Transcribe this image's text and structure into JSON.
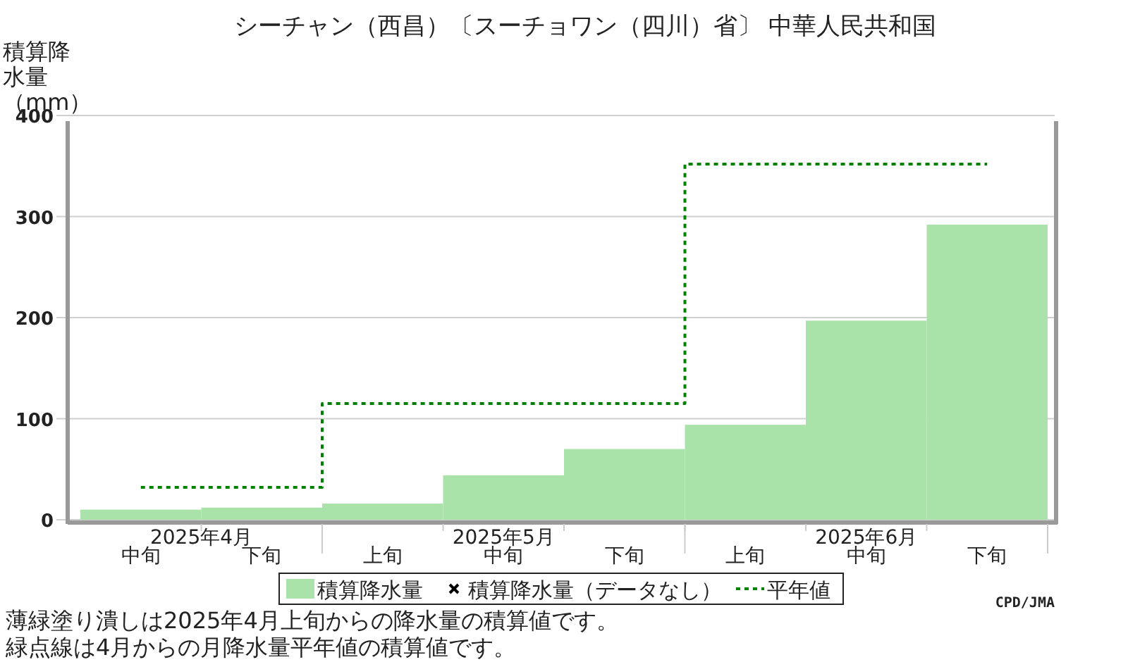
{
  "chart_data": {
    "type": "bar",
    "title": "シーチャン（西昌）〔スーチョワン（四川）省〕 中華人民共和国",
    "ylabel": "積算降水量（mm）",
    "categories": [
      "中旬",
      "下旬",
      "上旬",
      "中旬",
      "下旬",
      "上旬",
      "中旬",
      "下旬"
    ],
    "series": [
      {
        "name": "積算降水量",
        "color": "#aae3aa",
        "values": [
          10,
          12,
          16,
          44,
          70,
          94,
          197,
          292
        ]
      },
      {
        "name": "積算降水量（データなし）",
        "type": "scatter",
        "marker": "cross",
        "color": "#000000",
        "values": [
          null,
          null,
          null,
          null,
          null,
          null,
          null,
          null
        ]
      },
      {
        "name": "平年値",
        "type": "step",
        "line_style": "dotted",
        "color": "#008000",
        "values": [
          32,
          32,
          115,
          115,
          115,
          352,
          352,
          352
        ]
      }
    ],
    "ylim": [
      0,
      400
    ],
    "yticks": [
      0,
      100,
      200,
      300,
      400
    ],
    "grid": "y",
    "legend": "bottom",
    "annotations": [
      "2025年4月",
      "2025年5月",
      "2025年6月",
      "CPD/JMA",
      "薄緑塗り潰しは2025年4月上旬からの降水量の積算値です。",
      "緑点線は4月からの月降水量平年値の積算値です。"
    ]
  }
}
